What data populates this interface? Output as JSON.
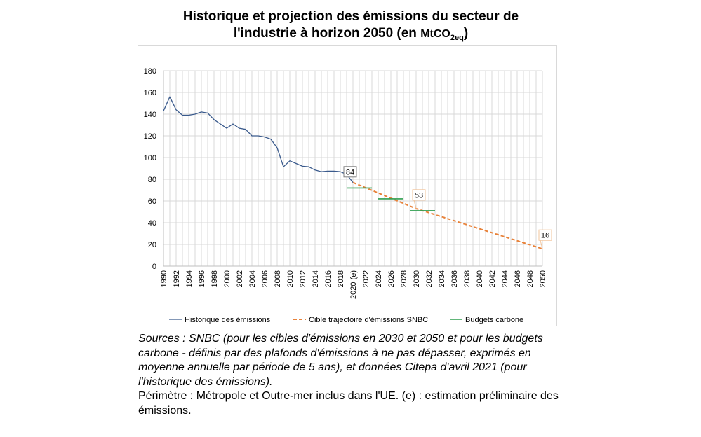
{
  "title": {
    "line1": "Historique et projection des émissions du secteur de",
    "line2": "l'industrie à horizon 2050 (en ",
    "unit_main": "MtCO",
    "unit_sub": "2eq",
    "close": ")"
  },
  "notes": {
    "sources": "Sources : SNBC (pour les cibles d'émissions en 2030 et 2050 et pour les budgets carbone - définis par des plafonds d'émissions à ne pas dépasser, exprimés en moyenne annuelle par période de 5 ans), et données Citepa d'avril 2021 (pour l'historique des émissions).",
    "perimeter": "Périmètre : Métropole et Outre-mer inclus dans l'UE. (e) : estimation préliminaire des émissions."
  },
  "chart_data": {
    "type": "line",
    "title": "Historique et projection des émissions du secteur de l'industrie à horizon 2050 (en MtCO2eq)",
    "ylim": [
      0,
      180
    ],
    "yticks": [
      0,
      20,
      40,
      60,
      80,
      100,
      120,
      140,
      160,
      180
    ],
    "xlim": [
      1990,
      2050
    ],
    "xtick_labels": [
      "1990",
      "1992",
      "1994",
      "1996",
      "1998",
      "2000",
      "2002",
      "2004",
      "2006",
      "2008",
      "2010",
      "2012",
      "2014",
      "2016",
      "2018",
      "2020 (e)",
      "2022",
      "2024",
      "2026",
      "2028",
      "2030",
      "2032",
      "2034",
      "2036",
      "2038",
      "2040",
      "2042",
      "2044",
      "2046",
      "2048",
      "2050"
    ],
    "grid": true,
    "legend_position": "bottom",
    "colors": {
      "historique": "#3a5a8c",
      "cible": "#e8823a",
      "budgets": "#2e9e4f",
      "grid": "#d9d9d9",
      "axis": "#bfbfbf"
    },
    "series": [
      {
        "name": "Historique des émissions",
        "style": "solid",
        "x": [
          1990,
          1991,
          1992,
          1993,
          1994,
          1995,
          1996,
          1997,
          1998,
          1999,
          2000,
          2001,
          2002,
          2003,
          2004,
          2005,
          2006,
          2007,
          2008,
          2009,
          2010,
          2011,
          2012,
          2013,
          2014,
          2015,
          2016,
          2017,
          2018,
          2019,
          2020
        ],
        "y": [
          143,
          156,
          144,
          139,
          139,
          140,
          142,
          141,
          135,
          131,
          127,
          131,
          127,
          126,
          120,
          120,
          119,
          117,
          109,
          91.5,
          97,
          94.5,
          92,
          91.5,
          88.5,
          87,
          87.5,
          87.5,
          87,
          84.5,
          77
        ]
      },
      {
        "name": "Cible trajectoire d'émissions SNBC",
        "style": "dashed",
        "x": [
          2020,
          2030,
          2050
        ],
        "y": [
          77,
          53,
          16
        ]
      },
      {
        "name": "Budgets carbone",
        "style": "segments",
        "segments": [
          {
            "x_start": 2019,
            "x_end": 2023,
            "y": 72
          },
          {
            "x_start": 2024,
            "x_end": 2028,
            "y": 62
          },
          {
            "x_start": 2029,
            "x_end": 2033,
            "y": 51
          }
        ]
      }
    ],
    "annotations": [
      {
        "x": 2019,
        "y": 84,
        "label": "84"
      },
      {
        "x": 2030,
        "y": 53,
        "label": "53"
      },
      {
        "x": 2050,
        "y": 16,
        "label": "16"
      }
    ]
  }
}
